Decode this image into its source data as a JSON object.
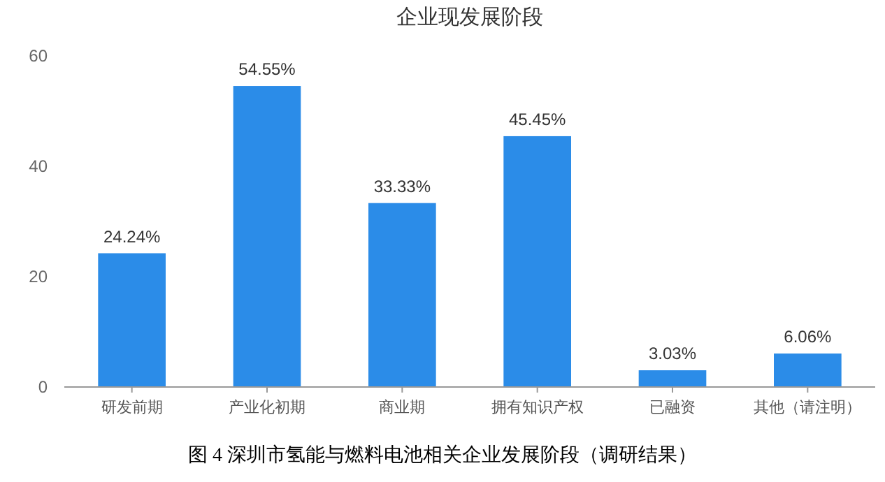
{
  "chart_data": {
    "type": "bar",
    "title": "企业现发展阶段",
    "categories": [
      "研发前期",
      "产业化初期",
      "商业期",
      "拥有知识产权",
      "已融资",
      "其他（请注明）"
    ],
    "values": [
      24.24,
      54.55,
      33.33,
      45.45,
      3.03,
      6.06
    ],
    "value_labels": [
      "24.24%",
      "54.55%",
      "33.33%",
      "45.45%",
      "3.03%",
      "6.06%"
    ],
    "color": "#2b8ce8",
    "ylim": [
      0,
      60
    ],
    "yticks": [
      0,
      20,
      40,
      60
    ],
    "grid": false,
    "annotations": [
      "图 4 深圳市氢能与燃料电池相关企业发展阶段（调研结果）"
    ]
  }
}
